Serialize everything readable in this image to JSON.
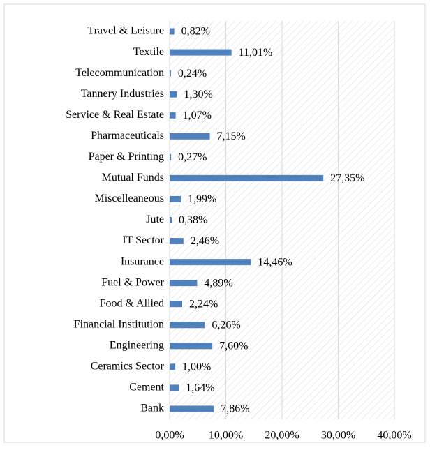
{
  "chart_data": {
    "type": "barh",
    "categories": [
      "Travel & Leisure",
      "Textile",
      "Telecommunication",
      "Tannery Industries",
      "Service & Real Estate",
      "Pharmaceuticals",
      "Paper & Printing",
      "Mutual Funds",
      "Miscelleaneous",
      "Jute",
      "IT Sector",
      "Insurance",
      "Fuel & Power",
      "Food & Allied",
      "Financial Institution",
      "Engineering",
      "Ceramics Sector",
      "Cement",
      "Bank"
    ],
    "values": [
      0.82,
      11.01,
      0.24,
      1.3,
      1.07,
      7.15,
      0.27,
      27.35,
      1.99,
      0.38,
      2.46,
      14.46,
      4.89,
      2.24,
      6.26,
      7.6,
      1.0,
      1.64,
      7.86
    ],
    "value_labels": [
      "0,82%",
      "11,01%",
      "0,24%",
      "1,30%",
      "1,07%",
      "7,15%",
      "0,27%",
      "27,35%",
      "1,99%",
      "0,38%",
      "2,46%",
      "14,46%",
      "4,89%",
      "2,24%",
      "6,26%",
      "7,60%",
      "1,00%",
      "1,64%",
      "7,86%"
    ],
    "color": "#4f81bd",
    "xlim": [
      0,
      40
    ],
    "xticks": [
      {
        "value": 0,
        "label": "0,00%"
      },
      {
        "value": 10,
        "label": "10,00%"
      },
      {
        "value": 20,
        "label": "20,00%"
      },
      {
        "value": 30,
        "label": "30,00%"
      },
      {
        "value": 40,
        "label": "40,00%"
      }
    ],
    "grid": true
  }
}
